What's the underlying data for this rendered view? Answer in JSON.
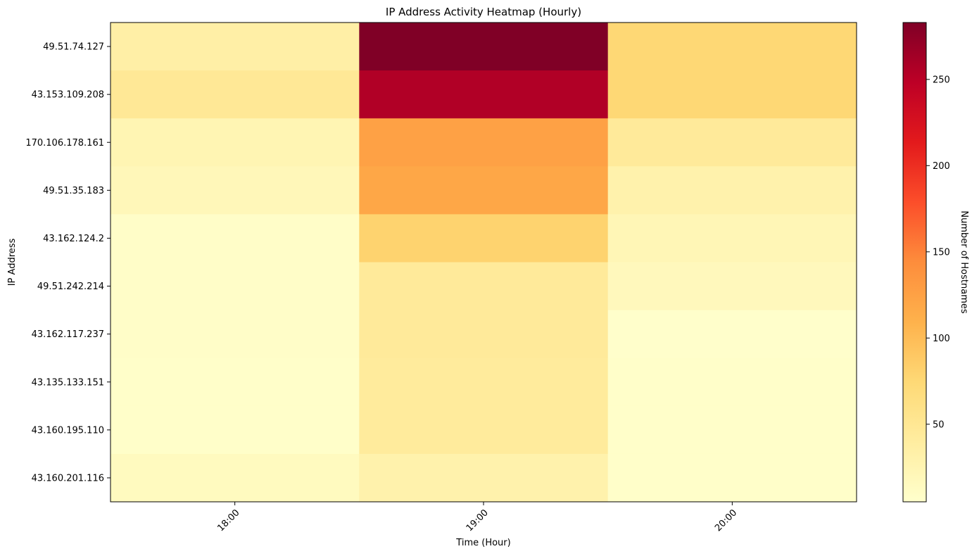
{
  "chart_data": {
    "type": "heatmap",
    "title": "IP Address Activity Heatmap (Hourly)",
    "xlabel": "Time (Hour)",
    "ylabel": "IP Address",
    "x_categories": [
      "18:00",
      "19:00",
      "20:00"
    ],
    "y_categories": [
      "49.51.74.127",
      "43.153.109.208",
      "170.106.178.161",
      "49.51.35.183",
      "43.162.124.2",
      "49.51.242.214",
      "43.162.117.237",
      "43.135.133.151",
      "43.160.195.110",
      "43.160.201.116"
    ],
    "values": [
      [
        35,
        283,
        75
      ],
      [
        48,
        255,
        75
      ],
      [
        25,
        125,
        45
      ],
      [
        20,
        120,
        30
      ],
      [
        8,
        80,
        22
      ],
      [
        8,
        45,
        18
      ],
      [
        8,
        45,
        6
      ],
      [
        7,
        43,
        7
      ],
      [
        7,
        43,
        7
      ],
      [
        15,
        30,
        7
      ]
    ],
    "colorbar": {
      "label": "Number of Hostnames",
      "vmin": 5,
      "vmax": 283,
      "ticks": [
        50,
        100,
        150,
        200,
        250
      ],
      "colormap": "YlOrRd"
    },
    "grid": false,
    "legend": "none"
  }
}
